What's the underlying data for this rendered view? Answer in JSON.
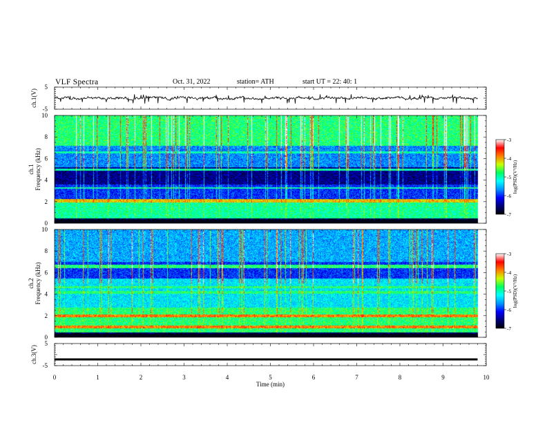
{
  "header": {
    "title": "VLF  Spectra",
    "date": "Oct. 31, 2022",
    "station": "station= ATH",
    "start": "start  UT  =    22: 40: 1"
  },
  "chart_data": [
    {
      "type": "line",
      "panel": "ch1-waveform",
      "ylabel": "ch.1(V)",
      "yticks": [
        "5",
        "-5"
      ],
      "ylim": [
        -5,
        5
      ],
      "x_range_min": [
        0,
        9.8
      ],
      "description_series": "noisy waveform centered near 0 V with sparse spikes to about -2 V"
    },
    {
      "type": "heatmap",
      "panel": "ch1-spectrogram",
      "ylabel": "Frequency  (kHz)",
      "channel_label": "ch.1",
      "yticks": [
        "0",
        "2",
        "4",
        "6",
        "8",
        "10"
      ],
      "ylim": [
        0,
        10
      ],
      "colorbar": {
        "label": "log(PSD)(V²/Hz)",
        "ticks": [
          "-3",
          "-4",
          "-5",
          "-6",
          "-7"
        ],
        "range": [
          -7,
          -3
        ]
      }
    },
    {
      "type": "heatmap",
      "panel": "ch2-spectrogram",
      "ylabel": "Frequency  (kHz)",
      "channel_label": "ch.2",
      "yticks": [
        "0",
        "2",
        "4",
        "6",
        "8",
        "10"
      ],
      "ylim": [
        0,
        10
      ],
      "colorbar": {
        "label": "log(PSD)(V²/Hz)",
        "ticks": [
          "-3",
          "-4",
          "-5",
          "-6",
          "-7"
        ],
        "range": [
          -7,
          -3
        ]
      }
    },
    {
      "type": "line",
      "panel": "ch3-waveform",
      "ylabel": "ch.3(V)",
      "yticks": [
        "5",
        "-5"
      ],
      "ylim": [
        -5,
        5
      ],
      "x_range_min": [
        0,
        9.8
      ],
      "level": -2.2
    }
  ],
  "xaxis": {
    "label": "Time  (min)",
    "ticks": [
      "0",
      "1",
      "2",
      "3",
      "4",
      "5",
      "6",
      "7",
      "8",
      "9",
      "10"
    ]
  },
  "colors": {
    "colormap": [
      "#000000",
      "#00007a",
      "#0000ff",
      "#0096ff",
      "#00ffff",
      "#00ff60",
      "#c8ff00",
      "#ff8000",
      "#ff0000",
      "#ffffff"
    ]
  }
}
